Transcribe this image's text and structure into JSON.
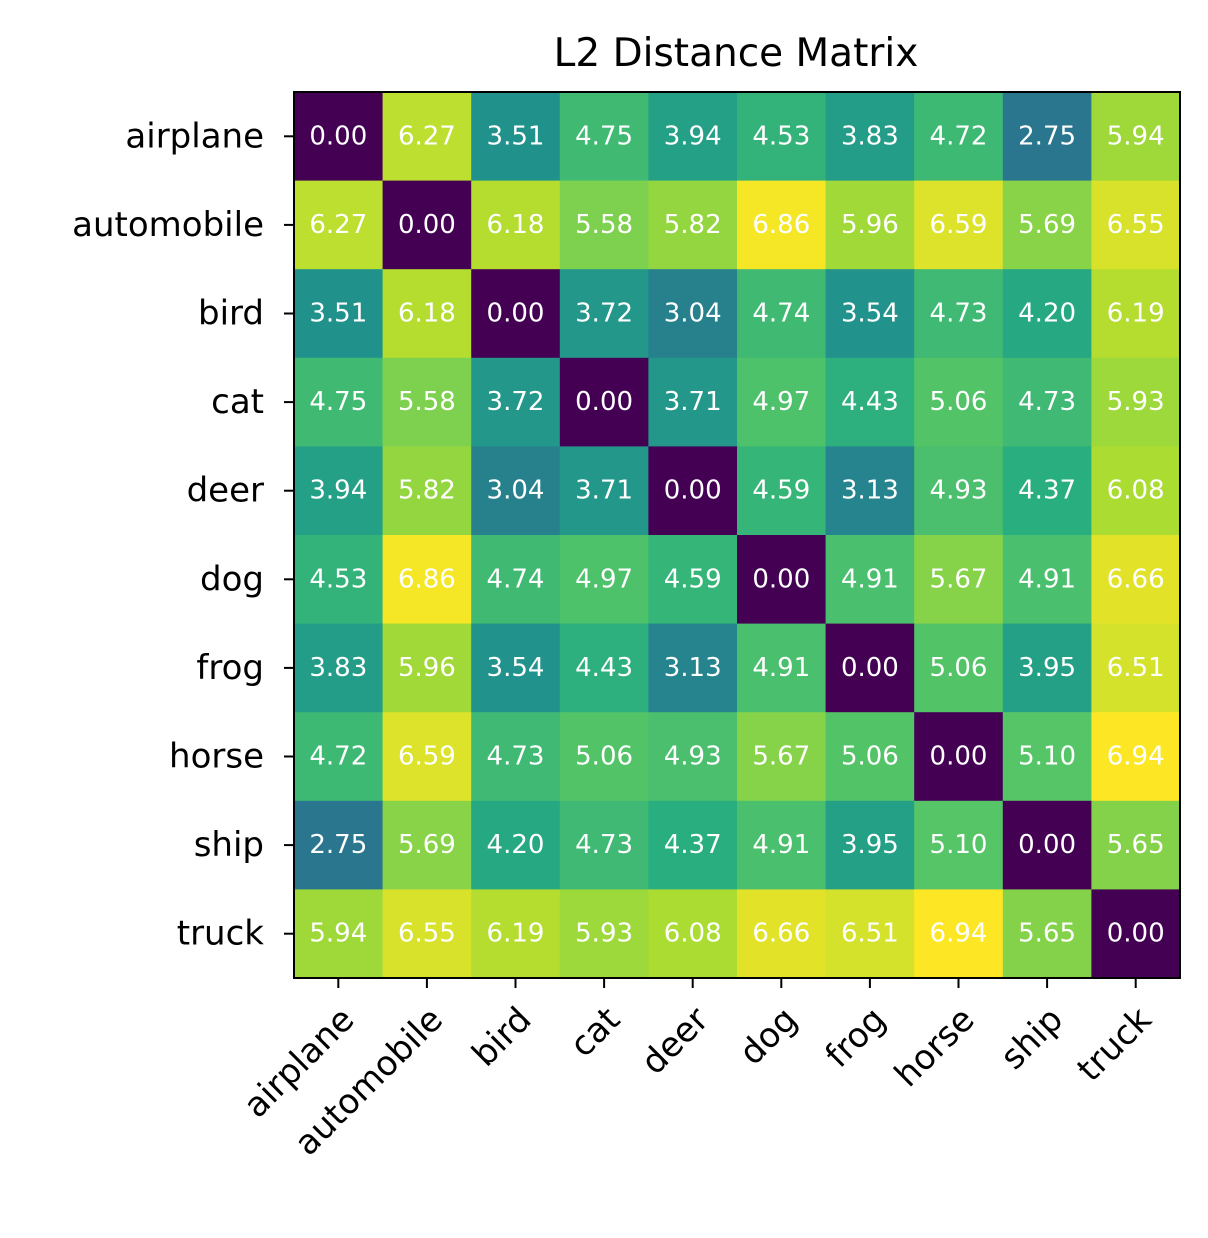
{
  "chart_data": {
    "type": "heatmap",
    "title": "L2 Distance Matrix",
    "xlabel": "",
    "ylabel": "",
    "x_categories": [
      "airplane",
      "automobile",
      "bird",
      "cat",
      "deer",
      "dog",
      "frog",
      "horse",
      "ship",
      "truck"
    ],
    "y_categories": [
      "airplane",
      "automobile",
      "bird",
      "cat",
      "deer",
      "dog",
      "frog",
      "horse",
      "ship",
      "truck"
    ],
    "values": [
      [
        0.0,
        6.27,
        3.51,
        4.75,
        3.94,
        4.53,
        3.83,
        4.72,
        2.75,
        5.94
      ],
      [
        6.27,
        0.0,
        6.18,
        5.58,
        5.82,
        6.86,
        5.96,
        6.59,
        5.69,
        6.55
      ],
      [
        3.51,
        6.18,
        0.0,
        3.72,
        3.04,
        4.74,
        3.54,
        4.73,
        4.2,
        6.19
      ],
      [
        4.75,
        5.58,
        3.72,
        0.0,
        3.71,
        4.97,
        4.43,
        5.06,
        4.73,
        5.93
      ],
      [
        3.94,
        5.82,
        3.04,
        3.71,
        0.0,
        4.59,
        3.13,
        4.93,
        4.37,
        6.08
      ],
      [
        4.53,
        6.86,
        4.74,
        4.97,
        4.59,
        0.0,
        4.91,
        5.67,
        4.91,
        6.66
      ],
      [
        3.83,
        5.96,
        3.54,
        4.43,
        3.13,
        4.91,
        0.0,
        5.06,
        3.95,
        6.51
      ],
      [
        4.72,
        6.59,
        4.73,
        5.06,
        4.93,
        5.67,
        5.06,
        0.0,
        5.1,
        6.94
      ],
      [
        2.75,
        5.69,
        4.2,
        4.73,
        4.37,
        4.91,
        3.95,
        5.1,
        0.0,
        5.65
      ],
      [
        5.94,
        6.55,
        6.19,
        5.93,
        6.08,
        6.66,
        6.51,
        6.94,
        5.65,
        0.0
      ]
    ],
    "value_labels": [
      [
        "0.00",
        "6.27",
        "3.51",
        "4.75",
        "3.94",
        "4.53",
        "3.83",
        "4.72",
        "2.75",
        "5.94"
      ],
      [
        "6.27",
        "0.00",
        "6.18",
        "5.58",
        "5.82",
        "6.86",
        "5.96",
        "6.59",
        "5.69",
        "6.55"
      ],
      [
        "3.51",
        "6.18",
        "0.00",
        "3.72",
        "3.04",
        "4.74",
        "3.54",
        "4.73",
        "4.20",
        "6.19"
      ],
      [
        "4.75",
        "5.58",
        "3.72",
        "0.00",
        "3.71",
        "4.97",
        "4.43",
        "5.06",
        "4.73",
        "5.93"
      ],
      [
        "3.94",
        "5.82",
        "3.04",
        "3.71",
        "0.00",
        "4.59",
        "3.13",
        "4.93",
        "4.37",
        "6.08"
      ],
      [
        "4.53",
        "6.86",
        "4.74",
        "4.97",
        "4.59",
        "0.00",
        "4.91",
        "5.67",
        "4.91",
        "6.66"
      ],
      [
        "3.83",
        "5.96",
        "3.54",
        "4.43",
        "3.13",
        "4.91",
        "0.00",
        "5.06",
        "3.95",
        "6.51"
      ],
      [
        "4.72",
        "6.59",
        "4.73",
        "5.06",
        "4.93",
        "5.67",
        "5.06",
        "0.00",
        "5.10",
        "6.94"
      ],
      [
        "2.75",
        "5.69",
        "4.20",
        "4.73",
        "4.37",
        "4.91",
        "3.95",
        "5.10",
        "0.00",
        "5.65"
      ],
      [
        "5.94",
        "6.55",
        "6.19",
        "5.93",
        "6.08",
        "6.66",
        "6.51",
        "6.94",
        "5.65",
        "0.00"
      ]
    ],
    "colormap": "viridis",
    "value_range": [
      0.0,
      6.94
    ],
    "grid": false,
    "legend": "none",
    "x_tick_rotation_deg": 45,
    "cell_label_color": "#ffffff"
  }
}
